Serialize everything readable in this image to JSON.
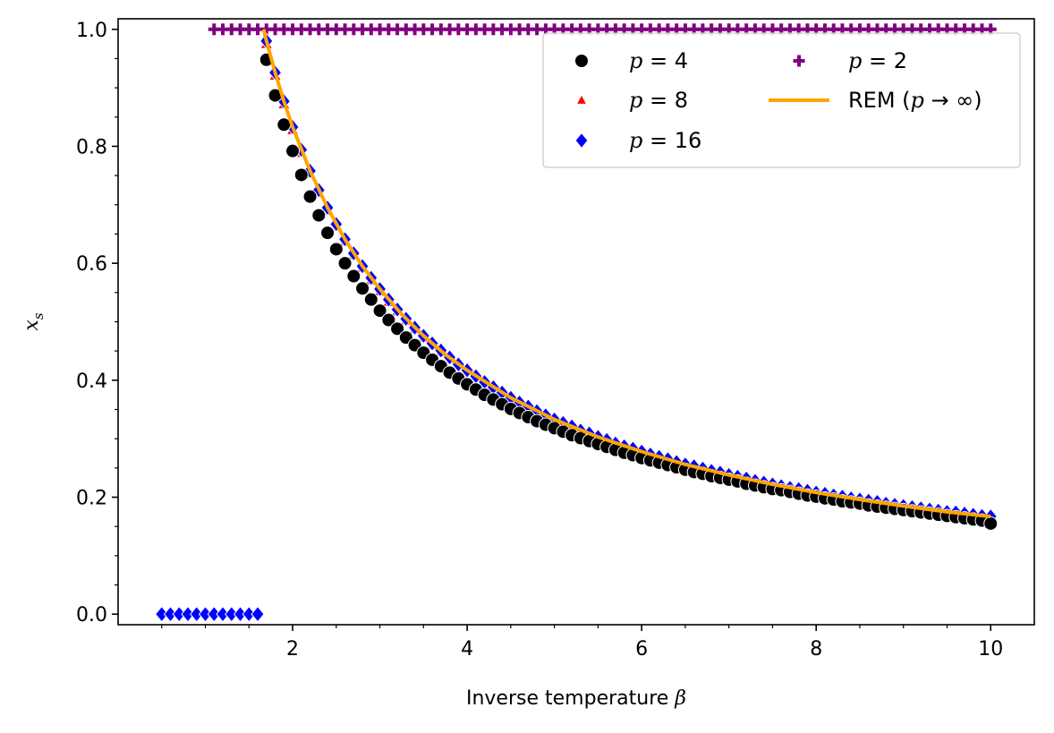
{
  "chart_data": {
    "type": "scatter",
    "title": "",
    "xlabel": "Inverse temperature",
    "xlabel_symbol": "β",
    "ylabel_symbol": "x",
    "ylabel_sub": "s",
    "xlim": [
      0,
      10.5
    ],
    "ylim": [
      -0.018,
      1.018
    ],
    "xticks": [
      2,
      4,
      6,
      8,
      10
    ],
    "xtick_labels": [
      "2",
      "4",
      "6",
      "8",
      "10"
    ],
    "yticks": [
      0.0,
      0.2,
      0.4,
      0.6,
      0.8,
      1.0
    ],
    "ytick_labels": [
      "0.0",
      "0.2",
      "0.4",
      "0.6",
      "0.8",
      "1.0"
    ],
    "x_minor_step": 0.5,
    "y_minor_step": 0.05,
    "grid": false,
    "legend_position": "top-right",
    "legend_columns": 2,
    "legend": [
      {
        "sym": "p",
        "text": " = 4",
        "marker": "circle",
        "color": "#000000"
      },
      {
        "sym": "p",
        "text": " = 8",
        "marker": "triangle",
        "color": "#ff0000"
      },
      {
        "sym": "p",
        "text": " = 16",
        "marker": "diamond",
        "color": "#0000ff"
      },
      {
        "sym": "p",
        "text": " = 2",
        "marker": "plus",
        "color": "#800080"
      },
      {
        "text": "REM (",
        "sym": "p",
        "text2": " → ∞)",
        "marker": "line",
        "color": "#ffa500"
      }
    ],
    "series": [
      {
        "name": "p = 2",
        "marker": "plus",
        "color": "#800080",
        "x": [
          1.1,
          1.2,
          1.3,
          1.4,
          1.5,
          1.6,
          1.7,
          1.8,
          1.9,
          2.0,
          2.1,
          2.2,
          2.3,
          2.4,
          2.5,
          2.6,
          2.7,
          2.8,
          2.9,
          3.0,
          3.1,
          3.2,
          3.3,
          3.4,
          3.5,
          3.6,
          3.7,
          3.8,
          3.9,
          4.0,
          4.1,
          4.2,
          4.3,
          4.4,
          4.5,
          4.6,
          4.7,
          4.8,
          4.9,
          5.0,
          5.1,
          5.2,
          5.3,
          5.4,
          5.5,
          5.6,
          5.7,
          5.8,
          5.9,
          6.0,
          6.1,
          6.2,
          6.3,
          6.4,
          6.5,
          6.6,
          6.7,
          6.8,
          6.9,
          7.0,
          7.1,
          7.2,
          7.3,
          7.4,
          7.5,
          7.6,
          7.7,
          7.8,
          7.9,
          8.0,
          8.1,
          8.2,
          8.3,
          8.4,
          8.5,
          8.6,
          8.7,
          8.8,
          8.9,
          9.0,
          9.1,
          9.2,
          9.3,
          9.4,
          9.5,
          9.6,
          9.7,
          9.8,
          9.9,
          10.0
        ],
        "y": [
          1.0,
          1.0,
          1.0,
          1.0,
          1.0,
          1.0,
          1.0,
          1.0,
          1.0,
          1.0,
          1.0,
          1.0,
          1.0,
          1.0,
          1.0,
          1.0,
          1.0,
          1.0,
          1.0,
          1.0,
          1.0,
          1.0,
          1.0,
          1.0,
          1.0,
          1.0,
          1.0,
          1.0,
          1.0,
          1.0,
          1.0,
          1.0,
          1.0,
          1.0,
          1.0,
          1.0,
          1.0,
          1.0,
          1.0,
          1.0,
          1.0,
          1.0,
          1.0,
          1.0,
          1.0,
          1.0,
          1.0,
          1.0,
          1.0,
          1.0,
          1.0,
          1.0,
          1.0,
          1.0,
          1.0,
          1.0,
          1.0,
          1.0,
          1.0,
          1.0,
          1.0,
          1.0,
          1.0,
          1.0,
          1.0,
          1.0,
          1.0,
          1.0,
          1.0,
          1.0,
          1.0,
          1.0,
          1.0,
          1.0,
          1.0,
          1.0,
          1.0,
          1.0,
          1.0,
          1.0,
          1.0,
          1.0,
          1.0,
          1.0,
          1.0,
          1.0,
          1.0,
          1.0,
          1.0,
          1.0
        ]
      },
      {
        "name": "p = 8",
        "marker": "triangle",
        "color": "#ff0000",
        "x": [
          1.7,
          1.8,
          1.9,
          2.0,
          2.1,
          2.2,
          2.3,
          2.4,
          2.5,
          2.6,
          2.7,
          2.8,
          2.9,
          3.0,
          3.1,
          3.2,
          3.3,
          3.4,
          3.5,
          3.6,
          3.7,
          3.8,
          3.9,
          4.0,
          4.1,
          4.2,
          4.3,
          4.4,
          4.5,
          4.6,
          4.7,
          4.8,
          4.9,
          5.0,
          5.1,
          5.2,
          5.3,
          5.4,
          5.5,
          5.6,
          5.7,
          5.8,
          5.9,
          6.0,
          6.1,
          6.2,
          6.3,
          6.4,
          6.5,
          6.6,
          6.7,
          6.8,
          6.9,
          7.0,
          7.1,
          7.2,
          7.3,
          7.4,
          7.5,
          7.6,
          7.7,
          7.8,
          7.9,
          8.0,
          8.1,
          8.2,
          8.3,
          8.4,
          8.5,
          8.6,
          8.7,
          8.8,
          8.9,
          9.0,
          9.1,
          9.2,
          9.3,
          9.4,
          9.5,
          9.6,
          9.7,
          9.8,
          9.9,
          10.0
        ],
        "y": [
          0.975,
          0.921,
          0.872,
          0.828,
          0.789,
          0.753,
          0.72,
          0.69,
          0.663,
          0.637,
          0.614,
          0.592,
          0.571,
          0.552,
          0.534,
          0.518,
          0.502,
          0.487,
          0.473,
          0.46,
          0.448,
          0.436,
          0.425,
          0.414,
          0.404,
          0.394,
          0.385,
          0.376,
          0.368,
          0.36,
          0.352,
          0.345,
          0.338,
          0.331,
          0.325,
          0.318,
          0.312,
          0.307,
          0.301,
          0.296,
          0.291,
          0.286,
          0.281,
          0.276,
          0.271,
          0.267,
          0.263,
          0.259,
          0.255,
          0.251,
          0.247,
          0.243,
          0.24,
          0.237,
          0.233,
          0.23,
          0.227,
          0.224,
          0.221,
          0.218,
          0.215,
          0.212,
          0.21,
          0.207,
          0.204,
          0.202,
          0.199,
          0.197,
          0.195,
          0.193,
          0.19,
          0.188,
          0.186,
          0.184,
          0.182,
          0.18,
          0.178,
          0.176,
          0.174,
          0.173,
          0.171,
          0.169,
          0.167,
          0.166
        ]
      },
      {
        "name": "p = 16",
        "marker": "diamond",
        "color": "#0000ff",
        "x": [
          0.5,
          0.6,
          0.7,
          0.8,
          0.9,
          1.0,
          1.1,
          1.2,
          1.3,
          1.4,
          1.5,
          1.6,
          1.7,
          1.8,
          1.9,
          2.0,
          2.1,
          2.2,
          2.3,
          2.4,
          2.5,
          2.6,
          2.7,
          2.8,
          2.9,
          3.0,
          3.1,
          3.2,
          3.3,
          3.4,
          3.5,
          3.6,
          3.7,
          3.8,
          3.9,
          4.0,
          4.1,
          4.2,
          4.3,
          4.4,
          4.5,
          4.6,
          4.7,
          4.8,
          4.9,
          5.0,
          5.1,
          5.2,
          5.3,
          5.4,
          5.5,
          5.6,
          5.7,
          5.8,
          5.9,
          6.0,
          6.1,
          6.2,
          6.3,
          6.4,
          6.5,
          6.6,
          6.7,
          6.8,
          6.9,
          7.0,
          7.1,
          7.2,
          7.3,
          7.4,
          7.5,
          7.6,
          7.7,
          7.8,
          7.9,
          8.0,
          8.1,
          8.2,
          8.3,
          8.4,
          8.5,
          8.6,
          8.7,
          8.8,
          8.9,
          9.0,
          9.1,
          9.2,
          9.3,
          9.4,
          9.5,
          9.6,
          9.7,
          9.8,
          9.9,
          10.0
        ],
        "y": [
          0.0,
          0.0,
          0.0,
          0.0,
          0.0,
          0.0,
          0.0,
          0.0,
          0.0,
          0.0,
          0.0,
          0.0,
          0.98,
          0.926,
          0.877,
          0.833,
          0.794,
          0.758,
          0.725,
          0.695,
          0.667,
          0.641,
          0.617,
          0.595,
          0.575,
          0.556,
          0.538,
          0.521,
          0.505,
          0.49,
          0.476,
          0.463,
          0.451,
          0.439,
          0.427,
          0.417,
          0.407,
          0.397,
          0.388,
          0.379,
          0.37,
          0.362,
          0.355,
          0.347,
          0.34,
          0.333,
          0.327,
          0.321,
          0.314,
          0.309,
          0.303,
          0.298,
          0.292,
          0.287,
          0.283,
          0.278,
          0.273,
          0.269,
          0.265,
          0.26,
          0.256,
          0.253,
          0.249,
          0.245,
          0.242,
          0.238,
          0.235,
          0.232,
          0.228,
          0.225,
          0.222,
          0.219,
          0.216,
          0.214,
          0.211,
          0.208,
          0.206,
          0.203,
          0.201,
          0.198,
          0.196,
          0.194,
          0.192,
          0.189,
          0.187,
          0.185,
          0.183,
          0.181,
          0.179,
          0.177,
          0.175,
          0.174,
          0.172,
          0.17,
          0.168,
          0.167
        ]
      },
      {
        "name": "p = 4",
        "marker": "circle",
        "color": "#000000",
        "x": [
          1.7,
          1.8,
          1.9,
          2.0,
          2.1,
          2.2,
          2.3,
          2.4,
          2.5,
          2.6,
          2.7,
          2.8,
          2.9,
          3.0,
          3.1,
          3.2,
          3.3,
          3.4,
          3.5,
          3.6,
          3.7,
          3.8,
          3.9,
          4.0,
          4.1,
          4.2,
          4.3,
          4.4,
          4.5,
          4.6,
          4.7,
          4.8,
          4.9,
          5.0,
          5.1,
          5.2,
          5.3,
          5.4,
          5.5,
          5.6,
          5.7,
          5.8,
          5.9,
          6.0,
          6.1,
          6.2,
          6.3,
          6.4,
          6.5,
          6.6,
          6.7,
          6.8,
          6.9,
          7.0,
          7.1,
          7.2,
          7.3,
          7.4,
          7.5,
          7.6,
          7.7,
          7.8,
          7.9,
          8.0,
          8.1,
          8.2,
          8.3,
          8.4,
          8.5,
          8.6,
          8.7,
          8.8,
          8.9,
          9.0,
          9.1,
          9.2,
          9.3,
          9.4,
          9.5,
          9.6,
          9.7,
          9.8,
          9.9,
          10.0
        ],
        "y": [
          0.948,
          0.887,
          0.837,
          0.792,
          0.751,
          0.714,
          0.682,
          0.652,
          0.624,
          0.6,
          0.578,
          0.557,
          0.538,
          0.519,
          0.503,
          0.488,
          0.473,
          0.46,
          0.447,
          0.435,
          0.424,
          0.413,
          0.403,
          0.393,
          0.384,
          0.375,
          0.367,
          0.359,
          0.351,
          0.344,
          0.337,
          0.33,
          0.324,
          0.318,
          0.312,
          0.306,
          0.301,
          0.296,
          0.291,
          0.286,
          0.281,
          0.276,
          0.272,
          0.267,
          0.263,
          0.259,
          0.255,
          0.251,
          0.247,
          0.243,
          0.24,
          0.236,
          0.233,
          0.23,
          0.227,
          0.223,
          0.22,
          0.217,
          0.214,
          0.212,
          0.209,
          0.206,
          0.203,
          0.201,
          0.198,
          0.196,
          0.193,
          0.191,
          0.189,
          0.186,
          0.184,
          0.182,
          0.18,
          0.178,
          0.176,
          0.174,
          0.172,
          0.17,
          0.168,
          0.166,
          0.164,
          0.162,
          0.16,
          0.155
        ]
      },
      {
        "name": "REM (p → ∞)",
        "marker": "line",
        "color": "#ffa500",
        "x": [
          1.667,
          1.7,
          1.8,
          1.9,
          2.0,
          2.2,
          2.4,
          2.6,
          2.8,
          3.0,
          3.25,
          3.5,
          3.75,
          4.0,
          4.5,
          5.0,
          5.5,
          6.0,
          6.5,
          7.0,
          7.5,
          8.0,
          8.5,
          9.0,
          9.5,
          10.0
        ],
        "y": [
          1.0,
          0.98,
          0.926,
          0.877,
          0.833,
          0.758,
          0.695,
          0.641,
          0.595,
          0.556,
          0.513,
          0.476,
          0.444,
          0.417,
          0.37,
          0.333,
          0.303,
          0.278,
          0.256,
          0.238,
          0.222,
          0.208,
          0.196,
          0.185,
          0.175,
          0.167
        ]
      }
    ]
  }
}
